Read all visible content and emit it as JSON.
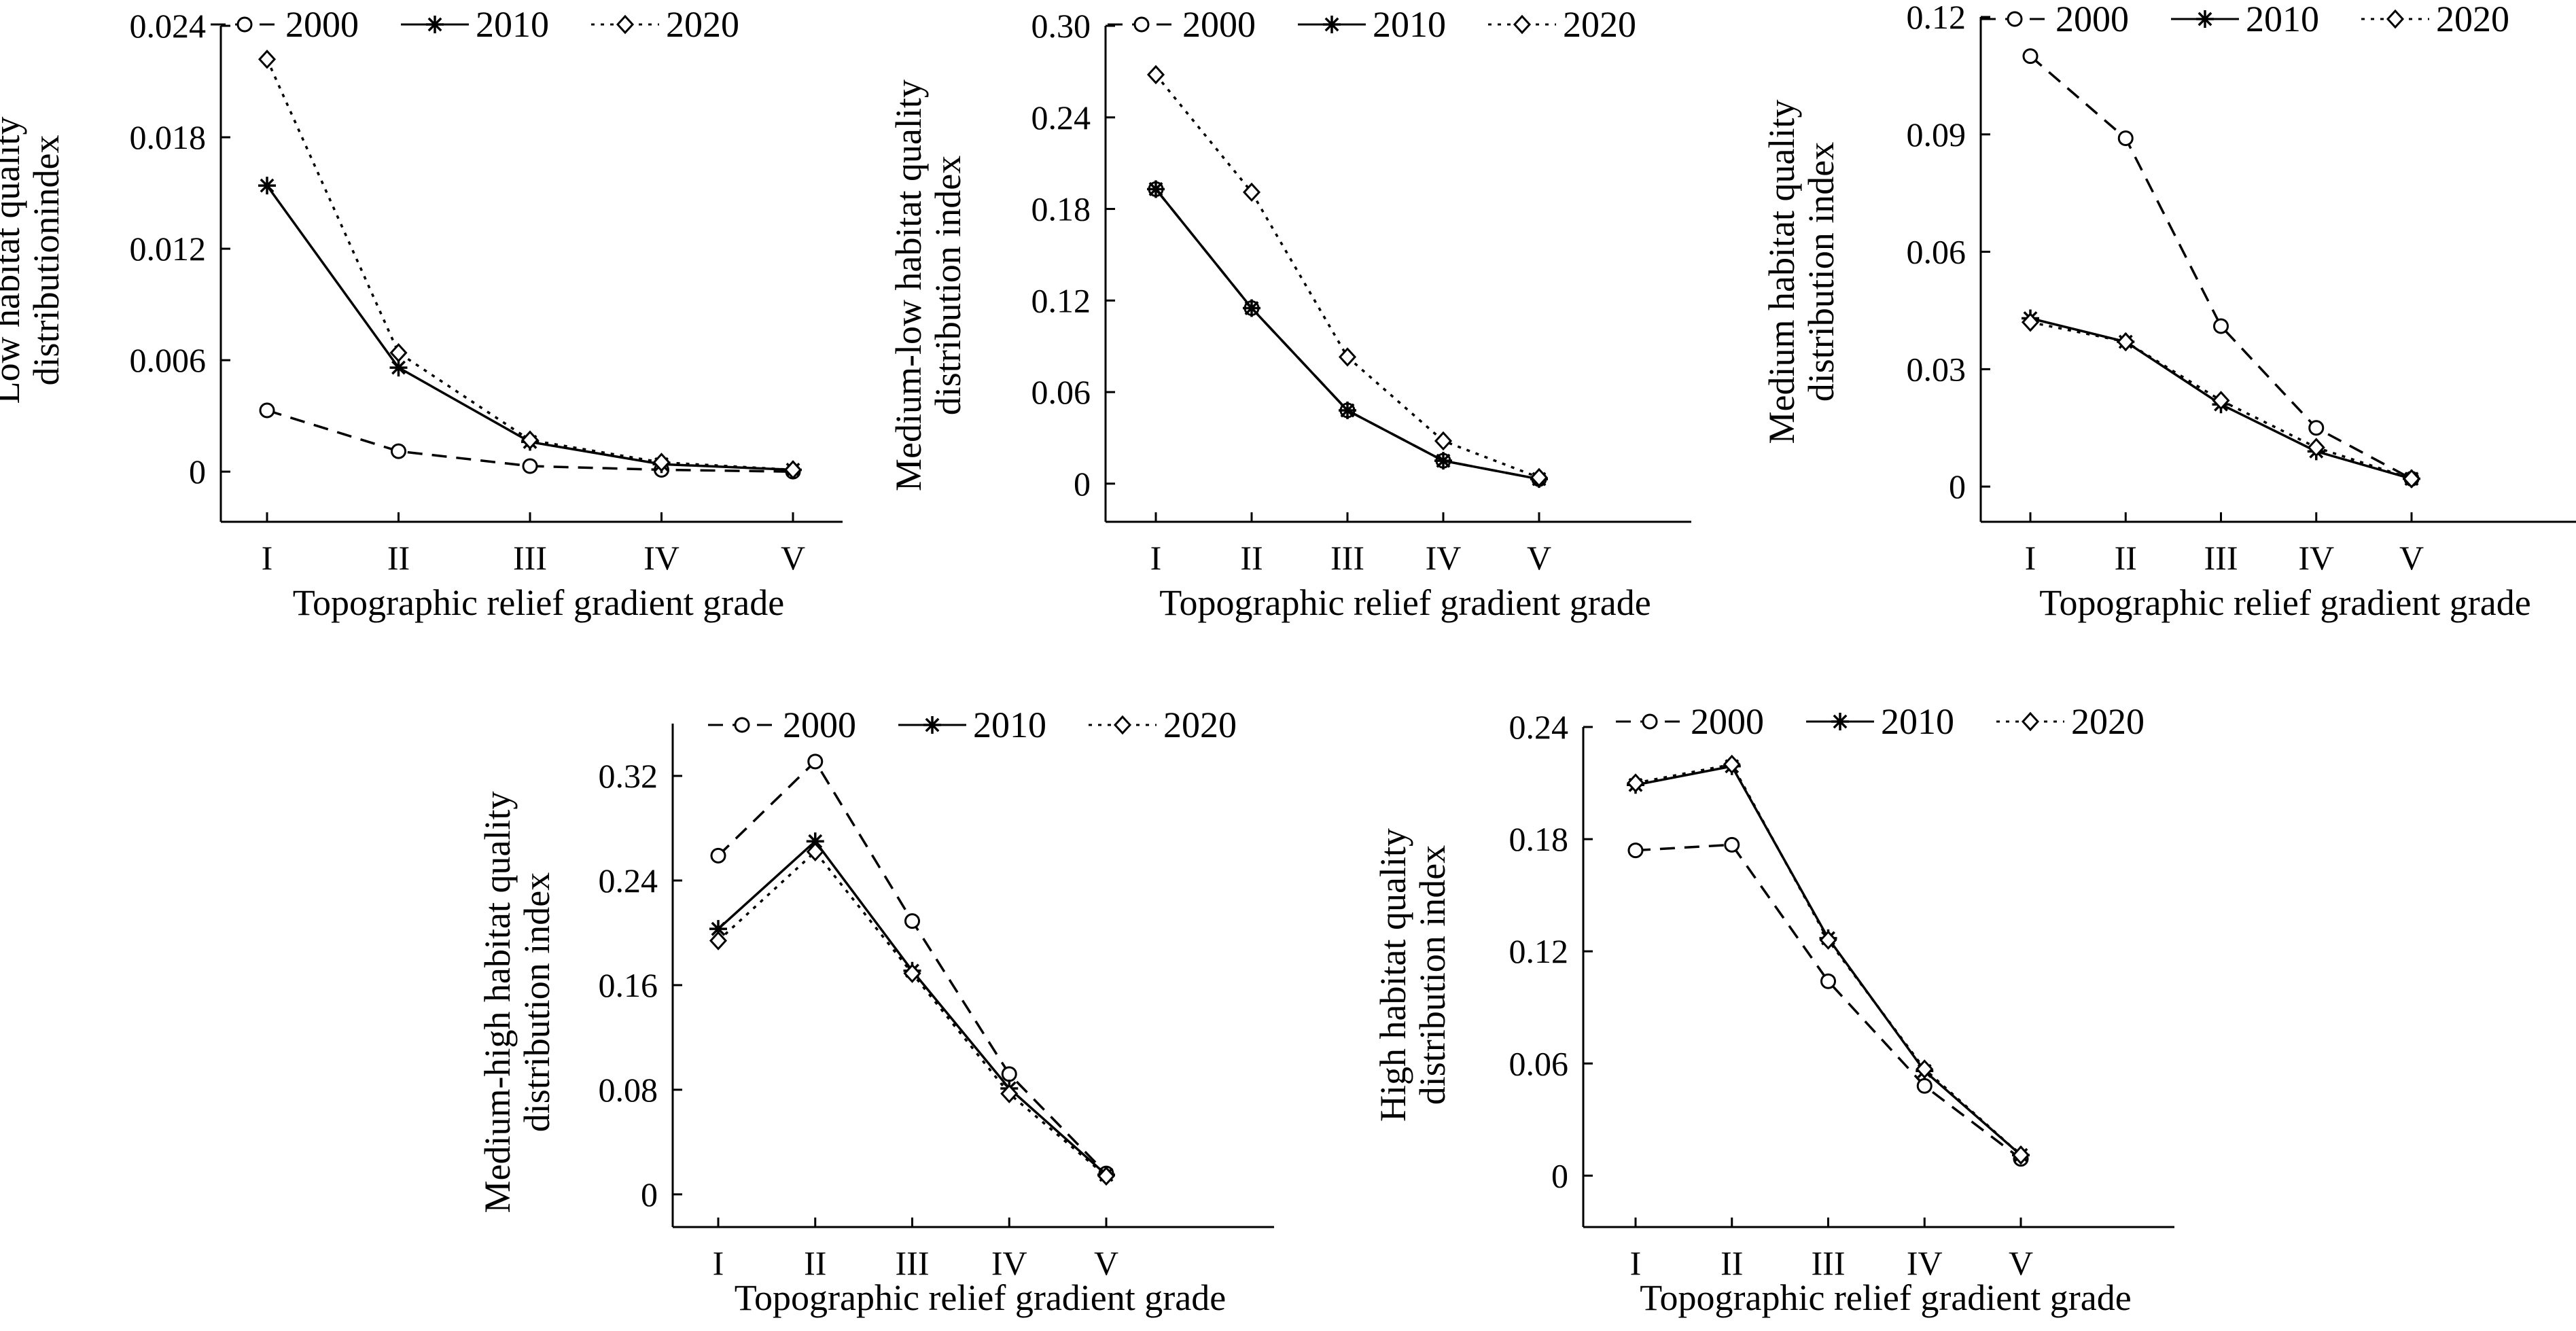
{
  "chart_data": [
    {
      "type": "line",
      "ylabel": [
        "Low habitat quality",
        "distributionindex"
      ],
      "xlabel": "Topographic relief gradient grade",
      "categories": [
        "I",
        "II",
        "III",
        "IV",
        "V"
      ],
      "ylim": [
        -0.0027,
        0.024
      ],
      "yticks": [
        0,
        0.006,
        0.012,
        0.018,
        0.024
      ],
      "ytick_labels": [
        "0",
        "0.006",
        "0.012",
        "0.018",
        "0.024"
      ],
      "series": [
        {
          "name": "2000",
          "values": [
            0.0033,
            0.0011,
            0.0003,
            0.0001,
            0.0
          ]
        },
        {
          "name": "2010",
          "values": [
            0.0154,
            0.0056,
            0.0016,
            0.0004,
            0.0001
          ]
        },
        {
          "name": "2020",
          "values": [
            0.0222,
            0.0064,
            0.0017,
            0.0005,
            0.0001
          ]
        }
      ]
    },
    {
      "type": "line",
      "ylabel": [
        "Medium-low habitat quality",
        "distribution index"
      ],
      "xlabel": "Topographic relief gradient grade",
      "categories": [
        "I",
        "II",
        "III",
        "IV",
        "V"
      ],
      "ylim": [
        -0.025,
        0.3
      ],
      "yticks": [
        0,
        0.06,
        0.12,
        0.18,
        0.24,
        0.3
      ],
      "ytick_labels": [
        "0",
        "0.06",
        "0.12",
        "0.18",
        "0.24",
        "0.30"
      ],
      "series": [
        {
          "name": "2000",
          "values": [
            0.193,
            0.115,
            0.048,
            0.015,
            0.003
          ]
        },
        {
          "name": "2010",
          "values": [
            0.193,
            0.115,
            0.048,
            0.015,
            0.003
          ]
        },
        {
          "name": "2020",
          "values": [
            0.268,
            0.191,
            0.083,
            0.028,
            0.004
          ]
        }
      ]
    },
    {
      "type": "line",
      "ylabel": [
        "Medium habitat quality",
        "distribution index"
      ],
      "xlabel": "Topographic relief gradient grade",
      "categories": [
        "I",
        "II",
        "III",
        "IV",
        "V"
      ],
      "ylim": [
        -0.009,
        0.12
      ],
      "yticks": [
        0,
        0.03,
        0.06,
        0.09,
        0.12
      ],
      "ytick_labels": [
        "0",
        "0.03",
        "0.06",
        "0.09",
        "0.12"
      ],
      "series": [
        {
          "name": "2000",
          "values": [
            0.11,
            0.089,
            0.041,
            0.015,
            0.002
          ]
        },
        {
          "name": "2010",
          "values": [
            0.043,
            0.037,
            0.021,
            0.009,
            0.002
          ]
        },
        {
          "name": "2020",
          "values": [
            0.042,
            0.037,
            0.022,
            0.01,
            0.002
          ]
        }
      ]
    },
    {
      "type": "line",
      "ylabel": [
        "Medium-high habitat quality",
        "distribution index"
      ],
      "xlabel": "Topographic relief gradient grade",
      "categories": [
        "I",
        "II",
        "III",
        "IV",
        "V"
      ],
      "ylim": [
        -0.025,
        0.36
      ],
      "yticks": [
        0,
        0.08,
        0.16,
        0.24,
        0.32
      ],
      "ytick_labels": [
        "0",
        "0.08",
        "0.16",
        "0.24",
        "0.32"
      ],
      "series": [
        {
          "name": "2000",
          "values": [
            0.259,
            0.331,
            0.209,
            0.092,
            0.016
          ]
        },
        {
          "name": "2010",
          "values": [
            0.203,
            0.27,
            0.171,
            0.081,
            0.015
          ]
        },
        {
          "name": "2020",
          "values": [
            0.194,
            0.262,
            0.169,
            0.077,
            0.014
          ]
        }
      ]
    },
    {
      "type": "line",
      "ylabel": [
        "High habitat quality",
        "distribution index"
      ],
      "xlabel": "Topographic relief gradient grade",
      "categories": [
        "I",
        "II",
        "III",
        "IV",
        "V"
      ],
      "ylim": [
        -0.0275,
        0.24
      ],
      "yticks": [
        0,
        0.06,
        0.12,
        0.18,
        0.24
      ],
      "ytick_labels": [
        "0",
        "0.06",
        "0.12",
        "0.18",
        "0.24"
      ],
      "series": [
        {
          "name": "2000",
          "values": [
            0.174,
            0.177,
            0.104,
            0.048,
            0.009
          ]
        },
        {
          "name": "2010",
          "values": [
            0.209,
            0.219,
            0.127,
            0.056,
            0.011
          ]
        },
        {
          "name": "2020",
          "values": [
            0.21,
            0.22,
            0.126,
            0.057,
            0.011
          ]
        }
      ]
    }
  ]
}
